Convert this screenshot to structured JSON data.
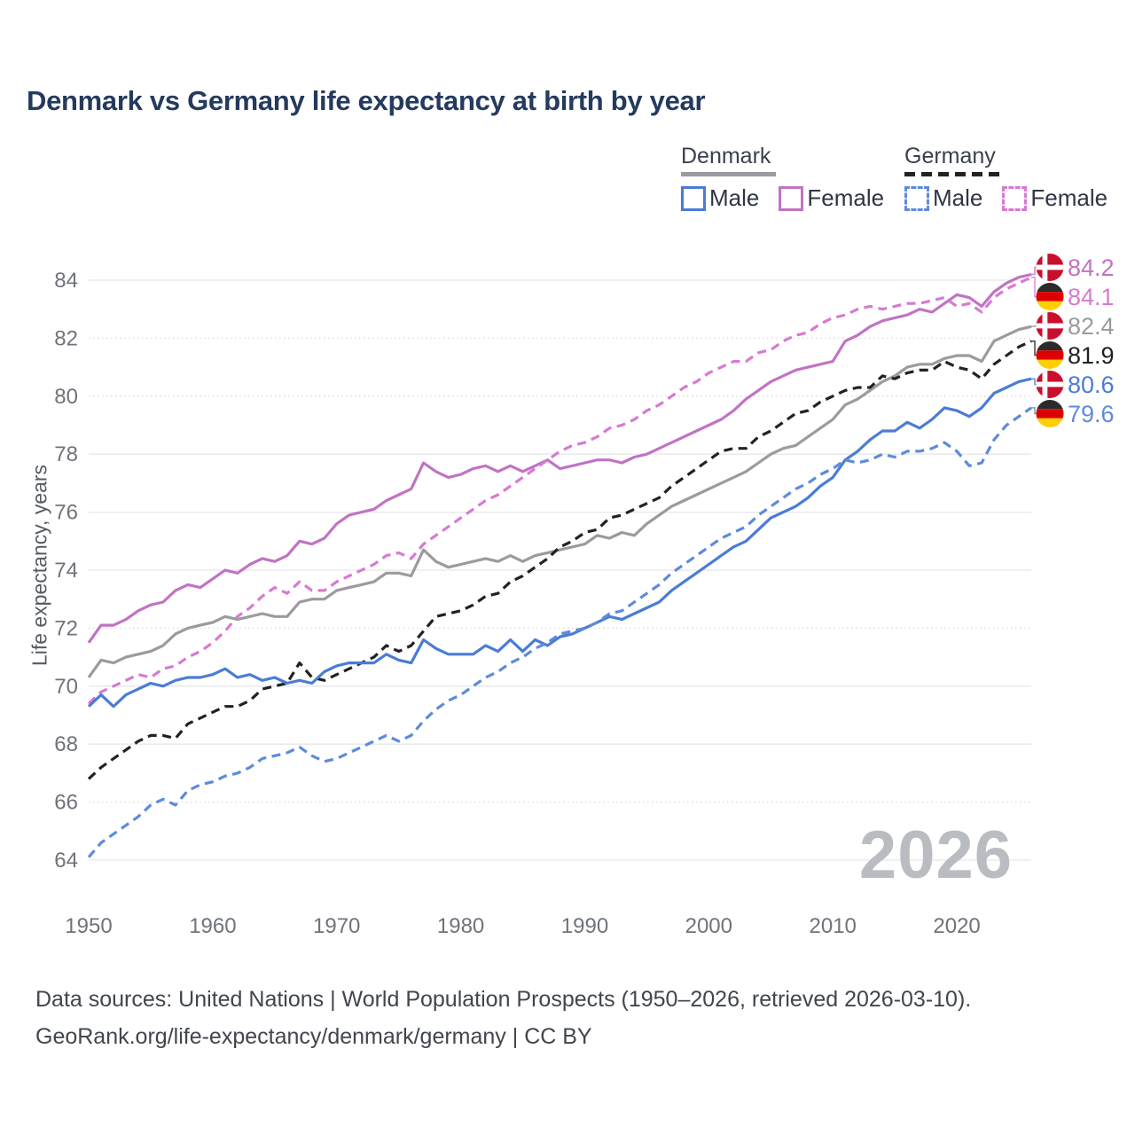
{
  "page": {
    "title": "Denmark vs Germany life expectancy at birth by year"
  },
  "legend": {
    "groups": [
      {
        "label": "Denmark",
        "line_style": "solid",
        "line_color": "#9B9B9F",
        "items": [
          {
            "label": "Male",
            "color": "#4A7CD6",
            "dash": false
          },
          {
            "label": "Female",
            "color": "#C173C3",
            "dash": false
          }
        ]
      },
      {
        "label": "Germany",
        "line_style": "dashed",
        "line_color": "#222222",
        "items": [
          {
            "label": "Male",
            "color": "#5D8BDC",
            "dash": true
          },
          {
            "label": "Female",
            "color": "#D77AD2",
            "dash": true
          }
        ]
      }
    ]
  },
  "watermark": "2026",
  "footer": {
    "line1": "Data sources: United Nations | World Population Prospects (1950–2026, retrieved 2026-03-10).",
    "line2": "GeoRank.org/life-expectancy/denmark/germany | CC BY"
  },
  "flag_colors": {
    "denmark": {
      "red": "#C8102E",
      "cross": "#FFFFFF"
    },
    "germany": {
      "black": "#2B2B2B",
      "red": "#DD0000",
      "gold": "#FFCE00"
    }
  },
  "chart_data": {
    "type": "line",
    "title": "Denmark vs Germany life expectancy at birth by year",
    "xlabel": "",
    "ylabel": "Life expectancy, years",
    "xlim": [
      1950,
      2026
    ],
    "ylim": [
      64,
      84
    ],
    "x_ticks": [
      1950,
      1960,
      1970,
      1980,
      1990,
      2000,
      2010,
      2020
    ],
    "y_ticks": [
      64,
      66,
      68,
      70,
      72,
      74,
      76,
      78,
      80,
      82,
      84
    ],
    "grid": "horizontal",
    "legend_position": "top-right",
    "years": [
      1950,
      1951,
      1952,
      1953,
      1954,
      1955,
      1956,
      1957,
      1958,
      1959,
      1960,
      1961,
      1962,
      1963,
      1964,
      1965,
      1966,
      1967,
      1968,
      1969,
      1970,
      1971,
      1972,
      1973,
      1974,
      1975,
      1976,
      1977,
      1978,
      1979,
      1980,
      1981,
      1982,
      1983,
      1984,
      1985,
      1986,
      1987,
      1988,
      1989,
      1990,
      1991,
      1992,
      1993,
      1994,
      1995,
      1996,
      1997,
      1998,
      1999,
      2000,
      2001,
      2002,
      2003,
      2004,
      2005,
      2006,
      2007,
      2008,
      2009,
      2010,
      2011,
      2012,
      2013,
      2014,
      2015,
      2016,
      2017,
      2018,
      2019,
      2020,
      2021,
      2022,
      2023,
      2024,
      2025,
      2026
    ],
    "series": [
      {
        "name": "Denmark Female",
        "country": "Denmark",
        "sex": "female",
        "flag": "denmark",
        "color": "#C173C3",
        "dash": false,
        "end_label": "84.2",
        "values": [
          71.5,
          72.1,
          72.1,
          72.3,
          72.6,
          72.8,
          72.9,
          73.3,
          73.5,
          73.4,
          73.7,
          74.0,
          73.9,
          74.2,
          74.4,
          74.3,
          74.5,
          75.0,
          74.9,
          75.1,
          75.6,
          75.9,
          76.0,
          76.1,
          76.4,
          76.6,
          76.8,
          77.7,
          77.4,
          77.2,
          77.3,
          77.5,
          77.6,
          77.4,
          77.6,
          77.4,
          77.6,
          77.8,
          77.5,
          77.6,
          77.7,
          77.8,
          77.8,
          77.7,
          77.9,
          78.0,
          78.2,
          78.4,
          78.6,
          78.8,
          79.0,
          79.2,
          79.5,
          79.9,
          80.2,
          80.5,
          80.7,
          80.9,
          81.0,
          81.1,
          81.2,
          81.9,
          82.1,
          82.4,
          82.6,
          82.7,
          82.8,
          83.0,
          82.9,
          83.2,
          83.5,
          83.4,
          83.1,
          83.6,
          83.9,
          84.1,
          84.2
        ]
      },
      {
        "name": "Germany Female",
        "country": "Germany",
        "sex": "female",
        "flag": "germany",
        "color": "#D77AD2",
        "dash": true,
        "end_label": "84.1",
        "values": [
          69.4,
          69.8,
          70.0,
          70.2,
          70.4,
          70.3,
          70.6,
          70.7,
          71.0,
          71.2,
          71.5,
          71.9,
          72.4,
          72.7,
          73.1,
          73.4,
          73.2,
          73.6,
          73.3,
          73.3,
          73.6,
          73.8,
          74.0,
          74.2,
          74.5,
          74.6,
          74.4,
          74.9,
          75.2,
          75.5,
          75.8,
          76.1,
          76.4,
          76.6,
          76.9,
          77.2,
          77.5,
          77.8,
          78.1,
          78.3,
          78.4,
          78.6,
          78.9,
          79.0,
          79.2,
          79.5,
          79.7,
          80.0,
          80.3,
          80.5,
          80.8,
          81.0,
          81.2,
          81.2,
          81.5,
          81.6,
          81.9,
          82.1,
          82.2,
          82.5,
          82.7,
          82.8,
          83.0,
          83.1,
          83.0,
          83.1,
          83.2,
          83.2,
          83.3,
          83.4,
          83.1,
          83.2,
          82.9,
          83.4,
          83.7,
          83.9,
          84.1
        ]
      },
      {
        "name": "Denmark",
        "country": "Denmark",
        "sex": "all",
        "flag": "denmark",
        "color": "#9B9B9F",
        "dash": false,
        "end_label": "82.4",
        "values": [
          70.3,
          70.9,
          70.8,
          71.0,
          71.1,
          71.2,
          71.4,
          71.8,
          72.0,
          72.1,
          72.2,
          72.4,
          72.3,
          72.4,
          72.5,
          72.4,
          72.4,
          72.9,
          73.0,
          73.0,
          73.3,
          73.4,
          73.5,
          73.6,
          73.9,
          73.9,
          73.8,
          74.7,
          74.3,
          74.1,
          74.2,
          74.3,
          74.4,
          74.3,
          74.5,
          74.3,
          74.5,
          74.6,
          74.7,
          74.8,
          74.9,
          75.2,
          75.1,
          75.3,
          75.2,
          75.6,
          75.9,
          76.2,
          76.4,
          76.6,
          76.8,
          77.0,
          77.2,
          77.4,
          77.7,
          78.0,
          78.2,
          78.3,
          78.6,
          78.9,
          79.2,
          79.7,
          79.9,
          80.2,
          80.5,
          80.7,
          81.0,
          81.1,
          81.1,
          81.3,
          81.4,
          81.4,
          81.2,
          81.9,
          82.1,
          82.3,
          82.4
        ]
      },
      {
        "name": "Germany",
        "country": "Germany",
        "sex": "all",
        "flag": "germany",
        "color": "#222222",
        "dash": true,
        "end_label": "81.9",
        "values": [
          66.8,
          67.2,
          67.5,
          67.8,
          68.1,
          68.3,
          68.3,
          68.2,
          68.7,
          68.9,
          69.1,
          69.3,
          69.3,
          69.5,
          69.9,
          70.0,
          70.1,
          70.8,
          70.3,
          70.2,
          70.4,
          70.6,
          70.8,
          71.0,
          71.4,
          71.2,
          71.4,
          71.9,
          72.4,
          72.5,
          72.6,
          72.8,
          73.1,
          73.2,
          73.6,
          73.8,
          74.1,
          74.4,
          74.8,
          75.0,
          75.3,
          75.4,
          75.8,
          75.9,
          76.1,
          76.3,
          76.5,
          76.9,
          77.2,
          77.5,
          77.8,
          78.1,
          78.2,
          78.2,
          78.6,
          78.8,
          79.1,
          79.4,
          79.5,
          79.8,
          80.0,
          80.2,
          80.3,
          80.3,
          80.7,
          80.6,
          80.8,
          80.9,
          80.9,
          81.2,
          81.0,
          80.9,
          80.6,
          81.1,
          81.4,
          81.7,
          81.9
        ]
      },
      {
        "name": "Denmark Male",
        "country": "Denmark",
        "sex": "male",
        "flag": "denmark",
        "color": "#4A7CD6",
        "dash": false,
        "end_label": "80.6",
        "values": [
          69.3,
          69.7,
          69.3,
          69.7,
          69.9,
          70.1,
          70.0,
          70.2,
          70.3,
          70.3,
          70.4,
          70.6,
          70.3,
          70.4,
          70.2,
          70.3,
          70.1,
          70.2,
          70.1,
          70.5,
          70.7,
          70.8,
          70.8,
          70.8,
          71.1,
          70.9,
          70.8,
          71.6,
          71.3,
          71.1,
          71.1,
          71.1,
          71.4,
          71.2,
          71.6,
          71.2,
          71.6,
          71.4,
          71.7,
          71.8,
          72.0,
          72.2,
          72.4,
          72.3,
          72.5,
          72.7,
          72.9,
          73.3,
          73.6,
          73.9,
          74.2,
          74.5,
          74.8,
          75.0,
          75.4,
          75.8,
          76.0,
          76.2,
          76.5,
          76.9,
          77.2,
          77.8,
          78.1,
          78.5,
          78.8,
          78.8,
          79.1,
          78.9,
          79.2,
          79.6,
          79.5,
          79.3,
          79.6,
          80.1,
          80.3,
          80.5,
          80.6
        ]
      },
      {
        "name": "Germany Male",
        "country": "Germany",
        "sex": "male",
        "flag": "germany",
        "color": "#5D8BDC",
        "dash": true,
        "end_label": "79.6",
        "values": [
          64.1,
          64.6,
          64.9,
          65.2,
          65.5,
          65.9,
          66.1,
          65.9,
          66.4,
          66.6,
          66.7,
          66.9,
          67.0,
          67.2,
          67.5,
          67.6,
          67.7,
          67.9,
          67.6,
          67.4,
          67.5,
          67.7,
          67.9,
          68.1,
          68.3,
          68.1,
          68.3,
          68.8,
          69.2,
          69.5,
          69.7,
          70.0,
          70.3,
          70.5,
          70.8,
          71.0,
          71.3,
          71.5,
          71.8,
          71.9,
          72.0,
          72.2,
          72.5,
          72.6,
          72.9,
          73.2,
          73.5,
          73.9,
          74.2,
          74.5,
          74.8,
          75.1,
          75.3,
          75.5,
          75.9,
          76.2,
          76.5,
          76.8,
          77.0,
          77.3,
          77.5,
          77.8,
          77.7,
          77.8,
          78.0,
          77.9,
          78.1,
          78.1,
          78.2,
          78.4,
          78.1,
          77.6,
          77.7,
          78.5,
          79.0,
          79.3,
          79.6
        ]
      }
    ]
  }
}
